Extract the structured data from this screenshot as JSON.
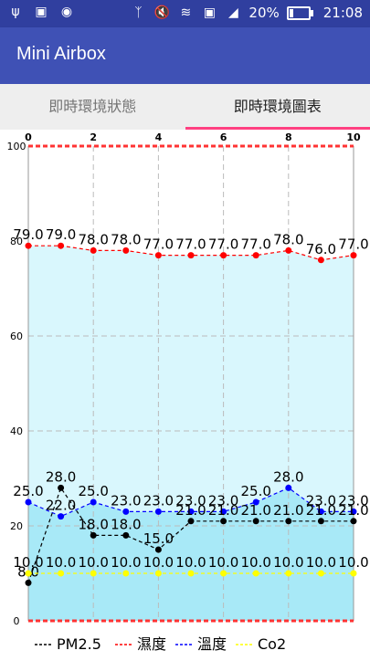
{
  "status_bar": {
    "left_icons": [
      "usb-icon",
      "code-icon",
      "android-icon"
    ],
    "right_icons": [
      "bluetooth-icon",
      "mute-icon",
      "wifi-icon",
      "sim-icon",
      "signal-icon"
    ],
    "battery_text": "20%",
    "battery_level": 0.2,
    "time": "21:08"
  },
  "app_bar": {
    "title": "Mini Airbox"
  },
  "tabs": [
    {
      "label": "即時環境狀態",
      "active": false
    },
    {
      "label": "即時環境圖表",
      "active": true
    }
  ],
  "chart_data": {
    "type": "line",
    "x": [
      0,
      1,
      2,
      3,
      4,
      5,
      6,
      7,
      8,
      9,
      10
    ],
    "x_ticks": [
      "0",
      "2",
      "4",
      "6",
      "8",
      "10"
    ],
    "y_ticks": [
      "0",
      "20",
      "40",
      "60",
      "80",
      "100"
    ],
    "xlim": [
      0,
      10
    ],
    "ylim": [
      0,
      100
    ],
    "grid": true,
    "legend_position": "bottom-left",
    "series": [
      {
        "name": "PM2.5",
        "color": "#000000",
        "values": [
          8,
          28,
          18,
          18,
          15,
          21,
          21,
          21,
          21,
          21,
          21
        ],
        "labels": [
          "8.0",
          "28.0",
          "18.0",
          "18.0",
          "15.0",
          "21.0",
          "21.0",
          "21.0",
          "21.0",
          "21.0",
          "21.0"
        ]
      },
      {
        "name": "濕度",
        "color": "#ff0000",
        "values": [
          79,
          79,
          78,
          78,
          77,
          77,
          77,
          77,
          78,
          76,
          77
        ],
        "labels": [
          "79.0",
          "79.0",
          "78.0",
          "78.0",
          "77.0",
          "77.0",
          "77.0",
          "77.0",
          "78.0",
          "76.0",
          "77.0"
        ]
      },
      {
        "name": "溫度",
        "color": "#0000ff",
        "values": [
          25,
          22,
          25,
          23,
          23,
          23,
          23,
          25,
          28,
          23,
          23
        ],
        "labels": [
          "25.0",
          "22.0",
          "25.0",
          "23.0",
          "23.0",
          "23.0",
          "23.0",
          "25.0",
          "28.0",
          "23.0",
          "23.0"
        ]
      },
      {
        "name": "Co2",
        "color": "#ffff00",
        "values": [
          10,
          10,
          10,
          10,
          10,
          10,
          10,
          10,
          10,
          10,
          10
        ],
        "labels": [
          "10.0",
          "10.0",
          "10.0",
          "10.0",
          "10.0",
          "10.0",
          "10.0",
          "10.0",
          "10.0",
          "10.0",
          "10.0"
        ]
      }
    ],
    "fill_colors": {
      "upper": "#d9f7fd",
      "lower": "#a8e9f7"
    }
  }
}
